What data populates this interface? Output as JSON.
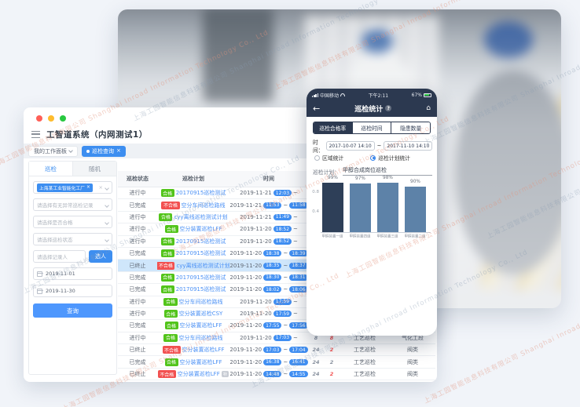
{
  "page": {
    "background": "#f1f4f9"
  },
  "desktop": {
    "title": "工智道系统（内网测试1）",
    "tabs_bar": {
      "workspace_tab": "我的工作面板",
      "active_tab": "巡检查询"
    },
    "sidebar": {
      "tabs": [
        "巡检",
        "随机"
      ],
      "factory_tag": "上海某工业智能化工厂",
      "selects": [
        "请选择有无异常巡检记录",
        "请选择是否合格",
        "请选择巡检状态"
      ],
      "person_placeholder": "请选择记录人",
      "person_button": "选人",
      "date_start": "2019-11-01",
      "date_end": "2019-11-30",
      "query_button": "查询"
    },
    "table": {
      "headers": [
        "巡检状态",
        "巡检计划",
        "时间",
        "巡检点数",
        "漏检数",
        "巡检类型",
        "巡检区域"
      ],
      "rows": [
        {
          "status": "进行中",
          "qualified": "合格",
          "plan": "20170915巡检测试",
          "date": "2019-11-21",
          "start": "12:03",
          "end": "",
          "n1": "21",
          "n2": "2",
          "n2_red": false,
          "type": "工艺巡检",
          "area": "阀类",
          "hl": false,
          "sup": ""
        },
        {
          "status": "已完成",
          "qualified": "不合格",
          "plan": "空分车间巡检路线",
          "date": "2019-11-21",
          "start": "11:53",
          "end": "11:58",
          "n1": "8",
          "n2": "8",
          "n2_red": true,
          "type": "工艺巡检",
          "area": "气化工段",
          "hl": false,
          "sup": ""
        },
        {
          "status": "进行中",
          "qualified": "合格",
          "plan": "cyy离线巡检测试计划",
          "date": "2019-11-21",
          "start": "11:49",
          "end": "",
          "n1": "8",
          "n2": "2",
          "n2_red": false,
          "type": "工艺巡检",
          "area": "阀类",
          "hl": false,
          "sup": ""
        },
        {
          "status": "进行中",
          "qualified": "合格",
          "plan": "空分装置巡检LFF",
          "date": "2019-11-20",
          "start": "18:52",
          "end": "",
          "n1": "24",
          "n2": "2",
          "n2_red": false,
          "type": "工艺巡检",
          "area": "阀类",
          "hl": false,
          "sup": ""
        },
        {
          "status": "进行中",
          "qualified": "合格",
          "plan": "20170915巡检测试",
          "date": "2019-11-20",
          "start": "18:52",
          "end": "",
          "n1": "21",
          "n2": "2",
          "n2_red": false,
          "type": "工艺巡检",
          "area": "阀类",
          "hl": false,
          "sup": ""
        },
        {
          "status": "已完成",
          "qualified": "合格",
          "plan": "20170915巡检测试",
          "date": "2019-11-20",
          "start": "18:38",
          "end": "18:39",
          "n1": "21",
          "n2": "2",
          "n2_red": false,
          "type": "工艺巡检",
          "area": "阀类",
          "hl": false,
          "sup": ""
        },
        {
          "status": "已终止",
          "qualified": "不合格",
          "plan": "cyy离线巡检测试计划",
          "date": "2019-11-20",
          "start": "18:35",
          "end": "18:37",
          "n1": "8",
          "n2": "2",
          "n2_red": true,
          "type": "工艺巡检",
          "area": "阀类",
          "hl": true,
          "sup": ""
        },
        {
          "status": "已完成",
          "qualified": "合格",
          "plan": "20170915巡检测试",
          "date": "2019-11-20",
          "start": "18:30",
          "end": "18:31",
          "n1": "21",
          "n2": "2",
          "n2_red": false,
          "type": "工艺巡检",
          "area": "阀类",
          "hl": false,
          "sup": ""
        },
        {
          "status": "已完成",
          "qualified": "合格",
          "plan": "20170915巡检测试",
          "date": "2019-11-20",
          "start": "18:02",
          "end": "18:06",
          "n1": "21",
          "n2": "2",
          "n2_red": false,
          "type": "工艺巡检",
          "area": "阀类",
          "hl": false,
          "sup": ""
        },
        {
          "status": "进行中",
          "qualified": "合格",
          "plan": "空分车间巡检路线",
          "date": "2019-11-20",
          "start": "17:59",
          "end": "",
          "n1": "8",
          "n2": "8",
          "n2_red": true,
          "type": "工艺巡检",
          "area": "气化工段",
          "hl": false,
          "sup": ""
        },
        {
          "status": "进行中",
          "qualified": "合格",
          "plan": "空分装置巡检CSY",
          "date": "2019-11-20",
          "start": "17:59",
          "end": "",
          "n1": "8",
          "n2": "2",
          "n2_red": false,
          "type": "工艺巡检",
          "area": "阀类",
          "hl": false,
          "sup": ""
        },
        {
          "status": "已完成",
          "qualified": "合格",
          "plan": "空分装置巡检LFF",
          "date": "2019-11-20",
          "start": "17:55",
          "end": "17:56",
          "n1": "24",
          "n2": "2",
          "n2_red": false,
          "type": "工艺巡检",
          "area": "阀类",
          "hl": false,
          "sup": ""
        },
        {
          "status": "进行中",
          "qualified": "合格",
          "plan": "空分车间巡检路线",
          "date": "2019-11-20",
          "start": "17:03",
          "end": "",
          "n1": "8",
          "n2": "8",
          "n2_red": true,
          "type": "工艺巡检",
          "area": "气化工段",
          "hl": false,
          "sup": ""
        },
        {
          "status": "已终止",
          "qualified": "不合格",
          "plan": "空分装置巡检LFF",
          "date": "2019-11-20",
          "start": "17:03",
          "end": "17:04",
          "n1": "24",
          "n2": "2",
          "n2_red": true,
          "type": "工艺巡检",
          "area": "阀类",
          "hl": false,
          "sup": ""
        },
        {
          "status": "已完成",
          "qualified": "合格",
          "plan": "空分装置巡检LFF",
          "date": "2019-11-20",
          "start": "16:38",
          "end": "16:41",
          "n1": "24",
          "n2": "2",
          "n2_red": false,
          "type": "工艺巡检",
          "area": "阀类",
          "hl": false,
          "sup": ""
        },
        {
          "status": "已终止",
          "qualified": "不合格",
          "plan": "空分装置巡检LFF",
          "date": "2019-11-20",
          "start": "14:48",
          "end": "14:55",
          "n1": "24",
          "n2": "2",
          "n2_red": true,
          "type": "工艺巡检",
          "area": "阀类",
          "hl": false,
          "sup": "补"
        }
      ]
    }
  },
  "phone": {
    "statusbar": {
      "carrier": "中国移动",
      "clock": "下午2:11",
      "battery": "67%"
    },
    "nav": {
      "title": "巡检统计",
      "badge": "?",
      "back_icon": "←",
      "home_icon": "⌂"
    },
    "segments": [
      "巡检合格率",
      "巡检时间",
      "隐患数量"
    ],
    "active_segment": 0,
    "time_label": "时间：",
    "time_start": "2017-10-07 14:10",
    "time_separator": "~",
    "time_end": "2017-11-10 14:10",
    "radio_area": "区域统计",
    "radio_plan": "巡检计划统计",
    "plan_label": "巡检计划：",
    "plan_value": "甲醇合成岗位巡检"
  },
  "chart_data": {
    "type": "bar",
    "title": "",
    "categories": [
      "甲醇装置一组",
      "甲醇装置四组",
      "甲醇装置三组",
      "甲醇装置二组"
    ],
    "values": [
      0.99,
      0.97,
      0.98,
      0.9
    ],
    "value_labels": [
      "99%",
      "97%",
      "98%",
      "90%"
    ],
    "xlabel": "",
    "ylabel": "",
    "ylim": [
      0,
      1
    ],
    "yticks": [
      0.8,
      0.4
    ],
    "grid": false,
    "legend": "none",
    "colors": [
      "#2e3f58",
      "#5d82a8",
      "#5d82a8",
      "#5d82a8"
    ]
  },
  "watermark": {
    "text": "上海工园智能信息科技有限公司 Shanghai Inroad Information Technology Co., Ltd"
  },
  "colors": {
    "primary_blue": "#3d8ef0",
    "ok_green": "#52c41a",
    "bad_red": "#f25050",
    "phone_navy": "#2c3950"
  }
}
